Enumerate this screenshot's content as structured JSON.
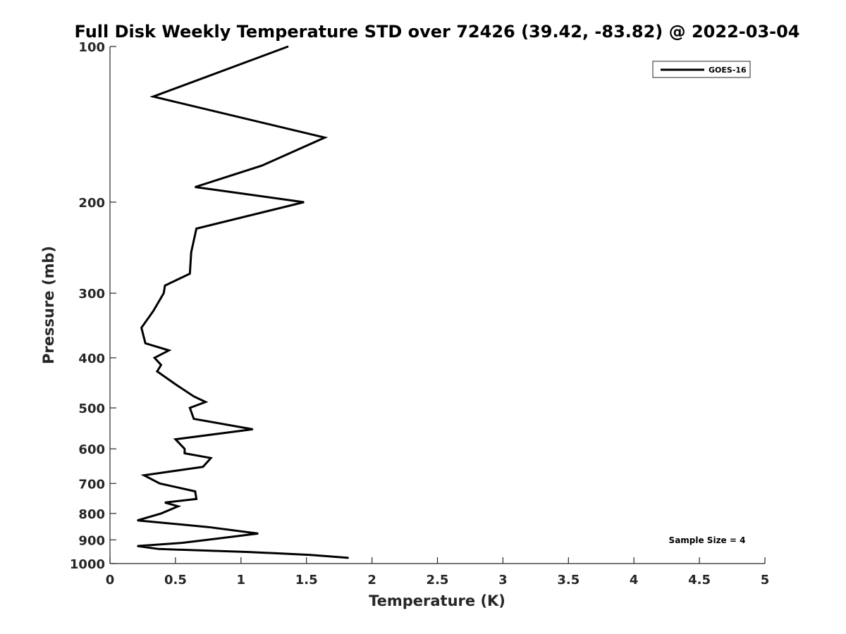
{
  "chart_data": {
    "type": "line",
    "title": "Full Disk Weekly Temperature STD over 72426 (39.42, -83.82) @ 2022-03-04",
    "xlabel": "Temperature (K)",
    "ylabel": "Pressure (mb)",
    "xlim": [
      0,
      5
    ],
    "ylim": [
      100,
      1000
    ],
    "y_scale": "log",
    "y_reversed": true,
    "grid": false,
    "legend_position": "top-right",
    "x_ticks": [
      "0",
      "0.5",
      "1",
      "1.5",
      "2",
      "2.5",
      "3",
      "3.5",
      "4",
      "4.5",
      "5"
    ],
    "y_ticks": [
      "100",
      "200",
      "300",
      "400",
      "500",
      "600",
      "700",
      "800",
      "900",
      "1000"
    ],
    "series": [
      {
        "name": "GOES-16",
        "color": "#000000",
        "points": [
          [
            1.36,
            100
          ],
          [
            0.33,
            125
          ],
          [
            1.64,
            150
          ],
          [
            1.16,
            170
          ],
          [
            0.65,
            187
          ],
          [
            1.48,
            200
          ],
          [
            0.66,
            225
          ],
          [
            0.62,
            250
          ],
          [
            0.61,
            275
          ],
          [
            0.42,
            290
          ],
          [
            0.41,
            300
          ],
          [
            0.33,
            325
          ],
          [
            0.24,
            350
          ],
          [
            0.27,
            375
          ],
          [
            0.45,
            387
          ],
          [
            0.34,
            400
          ],
          [
            0.39,
            413
          ],
          [
            0.36,
            425
          ],
          [
            0.5,
            450
          ],
          [
            0.64,
            475
          ],
          [
            0.73,
            487
          ],
          [
            0.61,
            500
          ],
          [
            0.64,
            525
          ],
          [
            1.09,
            550
          ],
          [
            0.5,
            575
          ],
          [
            0.57,
            600
          ],
          [
            0.57,
            612
          ],
          [
            0.77,
            625
          ],
          [
            0.71,
            650
          ],
          [
            0.26,
            675
          ],
          [
            0.38,
            700
          ],
          [
            0.65,
            725
          ],
          [
            0.66,
            750
          ],
          [
            0.42,
            762
          ],
          [
            0.52,
            775
          ],
          [
            0.39,
            800
          ],
          [
            0.21,
            825
          ],
          [
            0.75,
            850
          ],
          [
            1.13,
            875
          ],
          [
            0.74,
            900
          ],
          [
            0.55,
            912
          ],
          [
            0.21,
            925
          ],
          [
            0.37,
            937
          ],
          [
            1.06,
            950
          ],
          [
            1.53,
            962
          ],
          [
            1.82,
            975
          ]
        ]
      }
    ],
    "annotations": [
      "Sample Size = 4"
    ]
  }
}
